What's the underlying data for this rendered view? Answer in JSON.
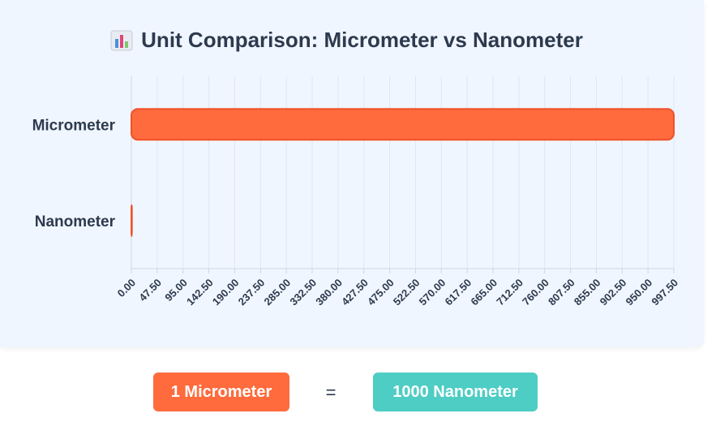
{
  "title": "Unit Comparison: Micrometer vs Nanometer",
  "title_icon": "bar-chart-icon",
  "chart_data": {
    "type": "bar",
    "orientation": "horizontal",
    "categories": [
      "Micrometer",
      "Nanometer"
    ],
    "values": [
      1000,
      1
    ],
    "xlim": [
      0,
      997.5
    ],
    "xticks": [
      "0.00",
      "47.50",
      "95.00",
      "142.50",
      "190.00",
      "237.50",
      "285.00",
      "332.50",
      "380.00",
      "427.50",
      "475.00",
      "522.50",
      "570.00",
      "617.50",
      "665.00",
      "712.50",
      "760.00",
      "807.50",
      "855.00",
      "902.50",
      "950.00",
      "997.50"
    ],
    "grid": true,
    "colors": [
      "#ff6b3d",
      "#ff6b3d"
    ],
    "border_color": "#f0502a"
  },
  "equation": {
    "left": "1 Micrometer",
    "sign": "=",
    "right": "1000 Nanometer",
    "left_color": "#ff6b3d",
    "right_color": "#4ecdc4"
  }
}
